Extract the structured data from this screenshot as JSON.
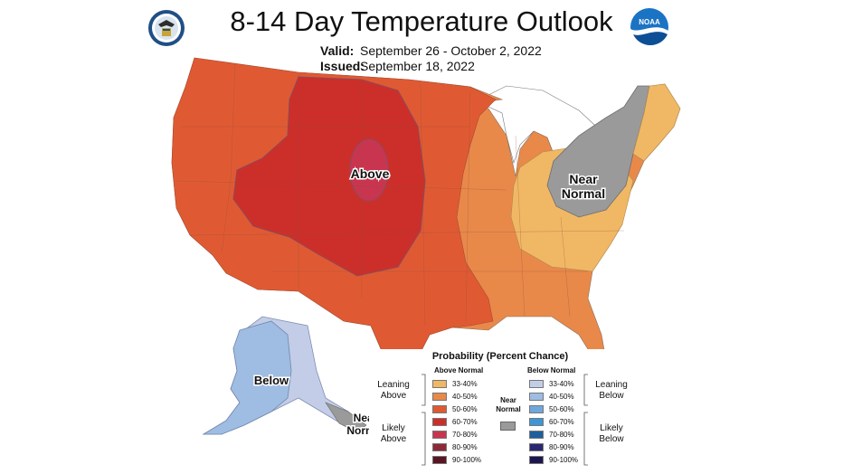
{
  "header": {
    "title": "8-14 Day Temperature Outlook",
    "valid_label": "Valid:",
    "valid_value": "September 26 - October 2, 2022",
    "issued_label": "Issued:",
    "issued_value": "September 18, 2022"
  },
  "logos": {
    "left": "commerce-seal-icon",
    "right": "noaa-logo-icon",
    "noaa_text": "NOAA"
  },
  "map": {
    "label_above": "Above",
    "label_near_normal_east": [
      "Near",
      "Normal"
    ],
    "label_below_alaska": "Below",
    "label_near_normal_alaska": [
      "Near",
      "Normal"
    ]
  },
  "legend": {
    "title": "Probability (Percent Chance)",
    "above_header": "Above Normal",
    "below_header": "Below Normal",
    "near_label": [
      "Near",
      "Normal"
    ],
    "leaning_above": [
      "Leaning",
      "Above"
    ],
    "likely_above": [
      "Likely",
      "Above"
    ],
    "leaning_below": [
      "Leaning",
      "Below"
    ],
    "likely_below": [
      "Likely",
      "Below"
    ],
    "above_items": [
      {
        "range": "33-40%",
        "color": "#f0b865"
      },
      {
        "range": "40-50%",
        "color": "#e8894a"
      },
      {
        "range": "50-60%",
        "color": "#df5a33"
      },
      {
        "range": "60-70%",
        "color": "#cc2f2a"
      },
      {
        "range": "70-80%",
        "color": "#c9354f"
      },
      {
        "range": "80-90%",
        "color": "#8c2a38"
      },
      {
        "range": "90-100%",
        "color": "#5a1523"
      }
    ],
    "below_items": [
      {
        "range": "33-40%",
        "color": "#c3cde8"
      },
      {
        "range": "40-50%",
        "color": "#9fbde3"
      },
      {
        "range": "50-60%",
        "color": "#6fa7dc"
      },
      {
        "range": "60-70%",
        "color": "#3d96d6"
      },
      {
        "range": "70-80%",
        "color": "#1d5f9e"
      },
      {
        "range": "80-90%",
        "color": "#2a2770"
      },
      {
        "range": "90-100%",
        "color": "#1c1650"
      }
    ],
    "near_color": "#9a9a9a"
  }
}
